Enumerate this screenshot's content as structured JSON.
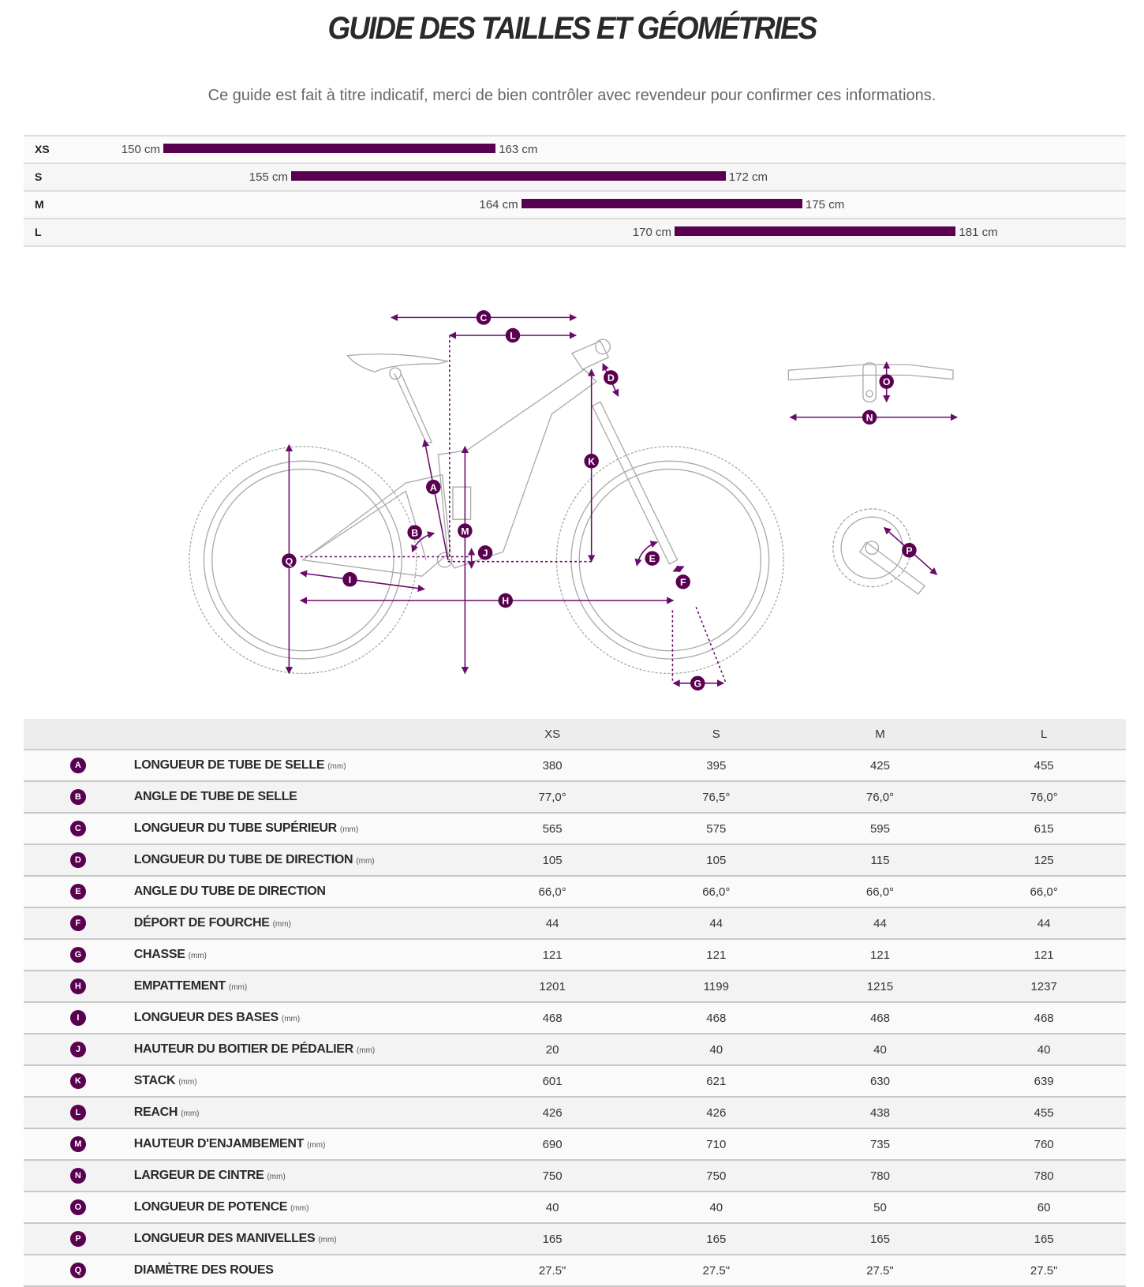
{
  "header": {
    "title": "GUIDE DES TAILLES ET GÉOMÉTRIES",
    "subtitle": "Ce guide est fait à titre indicatif, merci de bien contrôler avec revendeur pour confirmer ces informations."
  },
  "accent_color": "#5a0050",
  "size_guide": [
    {
      "size": "XS",
      "min": 150,
      "max": 163,
      "min_label": "150 cm",
      "max_label": "163 cm"
    },
    {
      "size": "S",
      "min": 155,
      "max": 172,
      "min_label": "155 cm",
      "max_label": "172 cm"
    },
    {
      "size": "M",
      "min": 164,
      "max": 175,
      "min_label": "164 cm",
      "max_label": "175 cm"
    },
    {
      "size": "L",
      "min": 170,
      "max": 181,
      "min_label": "170 cm",
      "max_label": "181 cm"
    }
  ],
  "geometry": {
    "columns": [
      "XS",
      "S",
      "M",
      "L"
    ],
    "rows": [
      {
        "letter": "A",
        "label": "LONGUEUR DE TUBE DE SELLE",
        "unit": "(mm)",
        "values": [
          "380",
          "395",
          "425",
          "455"
        ]
      },
      {
        "letter": "B",
        "label": "ANGLE DE TUBE DE SELLE",
        "unit": "",
        "values": [
          "77,0°",
          "76,5°",
          "76,0°",
          "76,0°"
        ]
      },
      {
        "letter": "C",
        "label": "LONGUEUR DU TUBE SUPÉRIEUR",
        "unit": "(mm)",
        "values": [
          "565",
          "575",
          "595",
          "615"
        ]
      },
      {
        "letter": "D",
        "label": "LONGUEUR DU TUBE DE DIRECTION",
        "unit": "(mm)",
        "values": [
          "105",
          "105",
          "115",
          "125"
        ]
      },
      {
        "letter": "E",
        "label": "ANGLE DU TUBE DE DIRECTION",
        "unit": "",
        "values": [
          "66,0°",
          "66,0°",
          "66,0°",
          "66,0°"
        ]
      },
      {
        "letter": "F",
        "label": "DÉPORT DE FOURCHE",
        "unit": "(mm)",
        "values": [
          "44",
          "44",
          "44",
          "44"
        ]
      },
      {
        "letter": "G",
        "label": "CHASSE",
        "unit": "(mm)",
        "values": [
          "121",
          "121",
          "121",
          "121"
        ]
      },
      {
        "letter": "H",
        "label": "EMPATTEMENT",
        "unit": "(mm)",
        "values": [
          "1201",
          "1199",
          "1215",
          "1237"
        ]
      },
      {
        "letter": "I",
        "label": "LONGUEUR DES BASES",
        "unit": "(mm)",
        "values": [
          "468",
          "468",
          "468",
          "468"
        ]
      },
      {
        "letter": "J",
        "label": "HAUTEUR DU BOITIER DE PÉDALIER",
        "unit": "(mm)",
        "values": [
          "20",
          "40",
          "40",
          "40"
        ]
      },
      {
        "letter": "K",
        "label": "STACK",
        "unit": "(mm)",
        "values": [
          "601",
          "621",
          "630",
          "639"
        ]
      },
      {
        "letter": "L",
        "label": "REACH",
        "unit": "(mm)",
        "values": [
          "426",
          "426",
          "438",
          "455"
        ]
      },
      {
        "letter": "M",
        "label": "HAUTEUR D'ENJAMBEMENT",
        "unit": "(mm)",
        "values": [
          "690",
          "710",
          "735",
          "760"
        ]
      },
      {
        "letter": "N",
        "label": "LARGEUR DE CINTRE",
        "unit": "(mm)",
        "values": [
          "750",
          "750",
          "780",
          "780"
        ]
      },
      {
        "letter": "O",
        "label": "LONGUEUR DE POTENCE",
        "unit": "(mm)",
        "values": [
          "40",
          "40",
          "50",
          "60"
        ]
      },
      {
        "letter": "P",
        "label": "LONGUEUR DES MANIVELLES",
        "unit": "(mm)",
        "values": [
          "165",
          "165",
          "165",
          "165"
        ]
      },
      {
        "letter": "Q",
        "label": "DIAMÈTRE DES ROUES",
        "unit": "",
        "values": [
          "27.5\"",
          "27.5\"",
          "27.5\"",
          "27.5\""
        ]
      }
    ]
  }
}
